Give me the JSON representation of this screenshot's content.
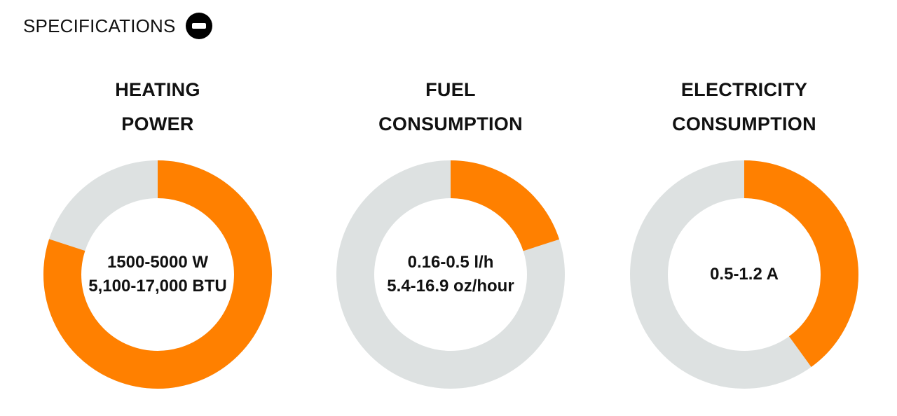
{
  "header": {
    "title": "SPECIFICATIONS",
    "toggle_icon": "minus-circle-icon"
  },
  "colors": {
    "fill": "#ff8000",
    "track": "#dde1e1"
  },
  "specs": [
    {
      "title_line1": "HEATING",
      "title_line2": "POWER",
      "value_line1": "1500-5000 W",
      "value_line2": "5,100-17,000 BTU",
      "fill_fraction": 0.8
    },
    {
      "title_line1": "FUEL",
      "title_line2": "CONSUMPTION",
      "value_line1": "0.16-0.5 l/h",
      "value_line2": "5.4-16.9 oz/hour",
      "fill_fraction": 0.2
    },
    {
      "title_line1": "ELECTRICITY",
      "title_line2": "CONSUMPTION",
      "value_line1": "0.5-1.2 A",
      "value_line2": "",
      "fill_fraction": 0.4
    }
  ]
}
